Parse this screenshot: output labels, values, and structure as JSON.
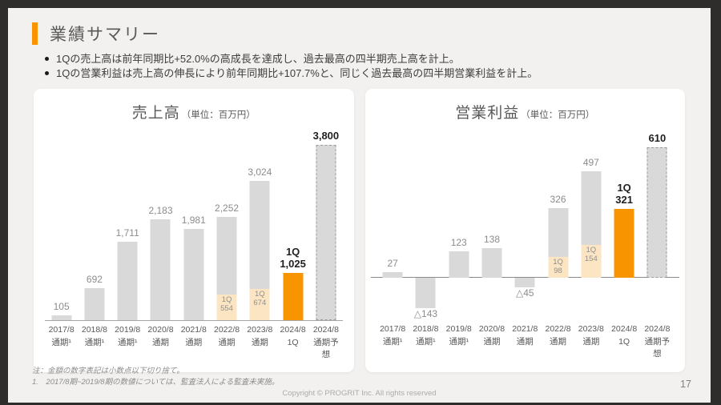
{
  "header": {
    "title": "業績サマリー",
    "bullets": [
      "1Qの売上高は前年同期比+52.0%の高成長を達成し、過去最高の四半期売上高を計上。",
      "1Qの営業利益は売上高の伸長により前年同期比+107.7%と、同じく過去最高の四半期営業利益を計上。"
    ]
  },
  "chart_data": [
    {
      "type": "bar",
      "title": "売上高",
      "unit_label": "（単位：百万円）",
      "ylim": [
        0,
        3800
      ],
      "grid": false,
      "legend": false,
      "categories": [
        [
          "2017/8",
          "通期¹"
        ],
        [
          "2018/8",
          "通期¹"
        ],
        [
          "2019/8",
          "通期¹"
        ],
        [
          "2020/8",
          "通期"
        ],
        [
          "2021/8",
          "通期"
        ],
        [
          "2022/8",
          "通期"
        ],
        [
          "2023/8",
          "通期"
        ],
        [
          "2024/8",
          "1Q"
        ],
        [
          "2024/8",
          "通期予想"
        ]
      ],
      "bars": [
        {
          "value": 105,
          "label": [
            "105"
          ],
          "style": "gray"
        },
        {
          "value": 692,
          "label": [
            "692"
          ],
          "style": "gray"
        },
        {
          "value": 1711,
          "label": [
            "1,711"
          ],
          "style": "gray"
        },
        {
          "value": 2183,
          "label": [
            "2,183"
          ],
          "style": "gray"
        },
        {
          "value": 1981,
          "label": [
            "1,981"
          ],
          "style": "gray"
        },
        {
          "value": 2252,
          "label": [
            "2,252"
          ],
          "style": "gray",
          "q1_value": 554,
          "q1_label": [
            "1Q",
            "554"
          ]
        },
        {
          "value": 3024,
          "label": [
            "3,024"
          ],
          "style": "gray",
          "q1_value": 674,
          "q1_label": [
            "1Q",
            "674"
          ]
        },
        {
          "value": 1025,
          "label": [
            "1Q",
            "1,025"
          ],
          "style": "orange",
          "emphasis": true
        },
        {
          "value": 3800,
          "label": [
            "3,800"
          ],
          "style": "forecast",
          "emphasis": true
        }
      ]
    },
    {
      "type": "bar",
      "title": "営業利益",
      "unit_label": "（単位：百万円）",
      "ylim": [
        -200,
        650
      ],
      "grid": false,
      "legend": false,
      "categories": [
        [
          "2017/8",
          "通期¹"
        ],
        [
          "2018/8",
          "通期¹"
        ],
        [
          "2019/8",
          "通期¹"
        ],
        [
          "2020/8",
          "通期"
        ],
        [
          "2021/8",
          "通期"
        ],
        [
          "2022/8",
          "通期"
        ],
        [
          "2023/8",
          "通期"
        ],
        [
          "2024/8",
          "1Q"
        ],
        [
          "2024/8",
          "通期予想"
        ]
      ],
      "bars": [
        {
          "value": 27,
          "label": [
            "27"
          ],
          "style": "gray"
        },
        {
          "value": -143,
          "label": [
            "△143"
          ],
          "style": "gray"
        },
        {
          "value": 123,
          "label": [
            "123"
          ],
          "style": "gray"
        },
        {
          "value": 138,
          "label": [
            "138"
          ],
          "style": "gray"
        },
        {
          "value": -45,
          "label": [
            "△45"
          ],
          "style": "gray"
        },
        {
          "value": 326,
          "label": [
            "326"
          ],
          "style": "gray",
          "q1_value": 98,
          "q1_label": [
            "1Q",
            "98"
          ]
        },
        {
          "value": 497,
          "label": [
            "497"
          ],
          "style": "gray",
          "q1_value": 154,
          "q1_label": [
            "1Q",
            "154"
          ]
        },
        {
          "value": 321,
          "label": [
            "1Q",
            "321"
          ],
          "style": "orange",
          "emphasis": true
        },
        {
          "value": 610,
          "label": [
            "610"
          ],
          "style": "forecast",
          "emphasis": true
        }
      ]
    }
  ],
  "footer": {
    "note1": "注：金額の数字表記は小数点以下切り捨て。",
    "note2": "1.　2017/8期~2019/8期の数値については、監査法人による監査未実施。",
    "copyright": "Copyright © PROGRIT Inc. All rights reserved",
    "page_number": "17"
  },
  "colors": {
    "accent_orange": "#F79400",
    "bar_gray": "#D9D9D9",
    "q1_peach": "#FBE5C3",
    "forecast_dash": "#9B9B9B",
    "frame_dark": "#2E2D2B",
    "slide_bg": "#F2F1EF"
  }
}
